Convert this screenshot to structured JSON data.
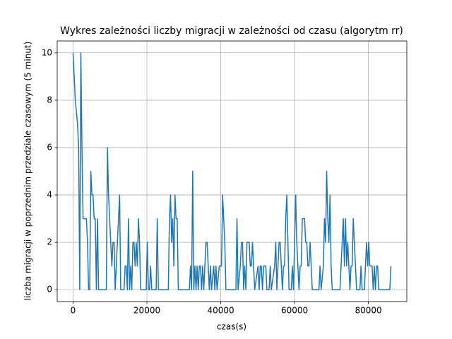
{
  "chart_data": {
    "type": "line",
    "title": "Wykres zależności liczby migracji w zależności od czasu (algorytm rr)",
    "x_label": "czas(s)",
    "y_label": "liczba migracji w poprzednim  przedziale czasowym (5 minut)",
    "x": [
      0,
      600,
      1200,
      1500,
      1800,
      2100,
      2400,
      2700,
      3600,
      3900,
      4200,
      4500,
      4800,
      5100,
      5400,
      5700,
      6000,
      6300,
      6600,
      6900,
      9000,
      9300,
      9600,
      9900,
      10200,
      10500,
      10800,
      11100,
      11400,
      12000,
      12600,
      12900,
      13800,
      14100,
      14400,
      14700,
      15000,
      15300,
      15600,
      15900,
      16200,
      16500,
      16800,
      17100,
      17400,
      17700,
      18000,
      18300,
      19800,
      20100,
      20400,
      20700,
      21000,
      21300,
      22500,
      22800,
      23100,
      25800,
      26100,
      26400,
      26700,
      27000,
      27300,
      27600,
      27900,
      28200,
      28500,
      31500,
      31800,
      32100,
      32400,
      32700,
      33000,
      33300,
      33600,
      33900,
      34200,
      34500,
      34800,
      35100,
      35400,
      35700,
      36000,
      36300,
      36600,
      36900,
      37200,
      37500,
      38100,
      38400,
      38700,
      39000,
      39600,
      40200,
      40500,
      40800,
      41100,
      41400,
      44100,
      44400,
      44700,
      45300,
      45600,
      45900,
      46200,
      46500,
      46800,
      47100,
      47700,
      48000,
      48300,
      48600,
      48900,
      49200,
      50100,
      50400,
      50700,
      51000,
      51300,
      51600,
      52200,
      52500,
      53100,
      53400,
      53700,
      54600,
      54900,
      55200,
      55500,
      55800,
      56100,
      56400,
      56700,
      57000,
      57300,
      57600,
      57900,
      58200,
      58500,
      59100,
      59400,
      59700,
      60300,
      60600,
      60900,
      61200,
      61500,
      61800,
      62100,
      62700,
      63000,
      63300,
      63600,
      63900,
      64200,
      64500,
      64800,
      66600,
      66900,
      67200,
      67800,
      68100,
      68400,
      68700,
      69000,
      69300,
      69600,
      69900,
      70200,
      72300,
      72600,
      72900,
      73200,
      73500,
      73800,
      74100,
      74400,
      74700,
      75000,
      75300,
      75600,
      75900,
      76200,
      76500,
      76800,
      77700,
      78000,
      78300,
      78900,
      79200,
      79500,
      79800,
      80100,
      80400,
      80700,
      81000,
      81300,
      81600,
      81900,
      82200,
      82500,
      82800,
      85800,
      86100
    ],
    "series": [
      {
        "color": "#1f77b4",
        "values": [
          10,
          8,
          7,
          6,
          0,
          10,
          6,
          3,
          3,
          2,
          0,
          0,
          5,
          4,
          4,
          3,
          3,
          0,
          3,
          0,
          0,
          6,
          4,
          3,
          2,
          1,
          2,
          2,
          0,
          2,
          4,
          0,
          0,
          1,
          1,
          0,
          3,
          0,
          1,
          0,
          2,
          2,
          1,
          2,
          1,
          3,
          2,
          0,
          0,
          2,
          0,
          0,
          1,
          0,
          0,
          3,
          0,
          0,
          3,
          4,
          2,
          3,
          1,
          4,
          3,
          3,
          0,
          0,
          1,
          0,
          5,
          0,
          1,
          0,
          1,
          0,
          1,
          1,
          0,
          1,
          0,
          1,
          2,
          2,
          1,
          0,
          1,
          0,
          1,
          0,
          1,
          0,
          1,
          1,
          4,
          3,
          2,
          0,
          0,
          3,
          0,
          1,
          2,
          2,
          0,
          1,
          0,
          2,
          2,
          1,
          1,
          2,
          1,
          0,
          1,
          0,
          1,
          1,
          0,
          1,
          1,
          0,
          0,
          1,
          0,
          1,
          2,
          0,
          1,
          2,
          2,
          1,
          0,
          1,
          1,
          3,
          4,
          2,
          0,
          0,
          1,
          0,
          4,
          2,
          1,
          0,
          1,
          1,
          3,
          3,
          2,
          2,
          1,
          1,
          2,
          1,
          0,
          0,
          1,
          0,
          1,
          3,
          2,
          5,
          3,
          2,
          4,
          1,
          0,
          0,
          1,
          2,
          3,
          1,
          3,
          1,
          2,
          1,
          0,
          1,
          1,
          3,
          2,
          1,
          0,
          0,
          1,
          0,
          0,
          1,
          2,
          1,
          2,
          1,
          1,
          1,
          0,
          1,
          0,
          1,
          1,
          0,
          0,
          1
        ]
      }
    ],
    "xlim": [
      -4305,
      90405
    ],
    "ylim": [
      -0.5,
      10.5
    ],
    "xticks": [
      0,
      20000,
      40000,
      60000,
      80000
    ],
    "yticks": [
      0,
      2,
      4,
      6,
      8,
      10
    ],
    "grid": true
  }
}
